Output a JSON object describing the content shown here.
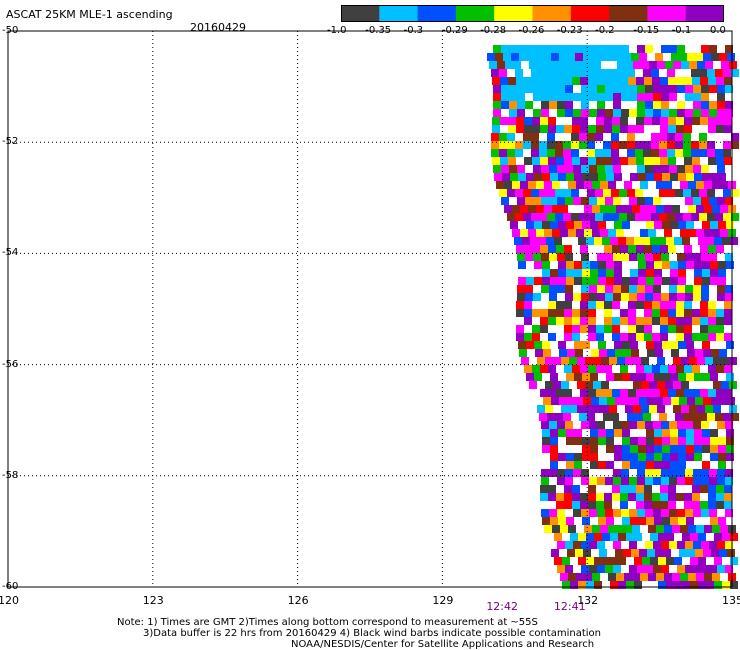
{
  "header": {
    "title": "ASCAT 25KM MLE-1 ascending",
    "date": "20160429"
  },
  "legend": {
    "colors": [
      "#404040",
      "#00c0ff",
      "#0050ff",
      "#00c000",
      "#ffff00",
      "#ff9000",
      "#ff0000",
      "#803010",
      "#ff00ff",
      "#9000c0"
    ],
    "ticks": [
      "-1.0",
      "-0.35",
      "-0.3",
      "-0.29",
      "-0.28",
      "-0.26",
      "-0.23",
      "-0.2",
      "-0.15",
      "-0.1",
      "0.0"
    ]
  },
  "axes": {
    "lon_ticks": [
      "120",
      "123",
      "126",
      "129",
      "132",
      "135"
    ],
    "lat_ticks": [
      "-50",
      "-52",
      "-54",
      "-56",
      "-58",
      "-60"
    ]
  },
  "times": [
    {
      "label": "12:42",
      "lon": 130.2
    },
    {
      "label": "12:41",
      "lon": 131.6
    }
  ],
  "notes": {
    "line1": "Note: 1) Times are GMT 2)Times along bottom correspond to measurement at ~55S",
    "line2": "3)Data buffer is 22 hrs from 20160429 4) Black wind barbs indicate possible contamination",
    "line3": "NOAA/NESDIS/Center for Satellite Applications and Research"
  },
  "colors": {
    "time_label": "#800080"
  }
}
